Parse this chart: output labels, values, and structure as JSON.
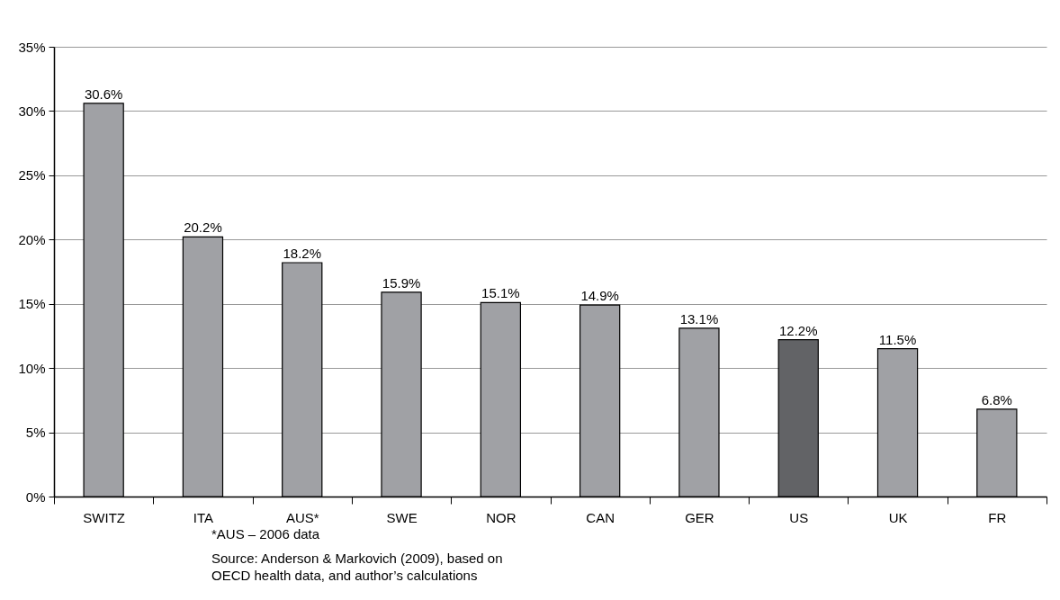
{
  "chart_data": {
    "type": "bar",
    "categories": [
      "SWITZ",
      "ITA",
      "AUS*",
      "SWE",
      "NOR",
      "CAN",
      "GER",
      "US",
      "UK",
      "FR"
    ],
    "values": [
      30.6,
      20.2,
      18.2,
      15.9,
      15.1,
      14.9,
      13.1,
      12.2,
      11.5,
      6.8
    ],
    "value_labels": [
      "30.6%",
      "20.2%",
      "18.2%",
      "15.9%",
      "15.1%",
      "14.9%",
      "13.1%",
      "12.2%",
      "11.5%",
      "6.8%"
    ],
    "colors": [
      "#a0a1a5",
      "#a0a1a5",
      "#a0a1a5",
      "#a0a1a5",
      "#a0a1a5",
      "#a0a1a5",
      "#a0a1a5",
      "#626366",
      "#a0a1a5",
      "#a0a1a5"
    ],
    "ylim": [
      0,
      35
    ],
    "yticks": [
      {
        "value": 0,
        "label": "0%"
      },
      {
        "value": 5,
        "label": "5%"
      },
      {
        "value": 10,
        "label": "10%"
      },
      {
        "value": 15,
        "label": "15%"
      },
      {
        "value": 20,
        "label": "20%"
      },
      {
        "value": 25,
        "label": "25%"
      },
      {
        "value": 30,
        "label": "30%"
      },
      {
        "value": 35,
        "label": "35%"
      }
    ],
    "grid": "y",
    "annotations": [
      "*AUS – 2006 data",
      "Source: Anderson & Markovich (2009), based on OECD health data, and author’s calculations"
    ]
  }
}
